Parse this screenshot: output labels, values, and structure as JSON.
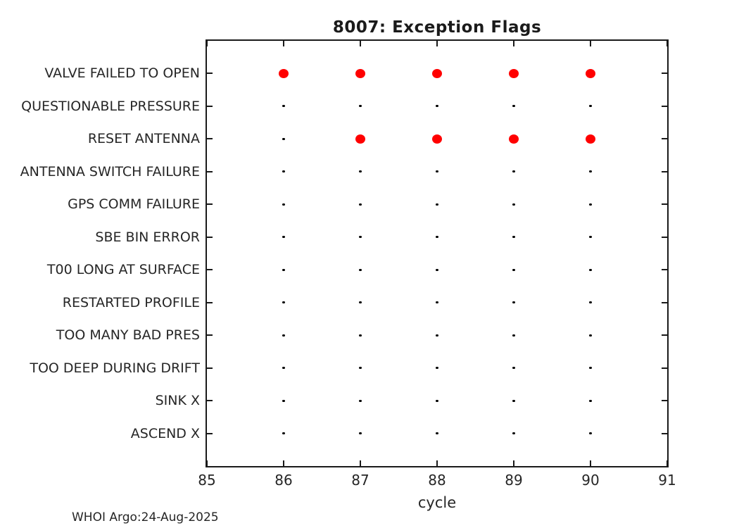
{
  "footer": {
    "credit": "WHOI Argo:24-Aug-2025"
  },
  "colors": {
    "flag_marker": "#ff0000",
    "no_flag_marker": "#000000",
    "axis": "#1a1a1a",
    "text": "#262626",
    "background": "#ffffff"
  },
  "chart_data": {
    "type": "scatter",
    "title": "8007: Exception Flags",
    "xlabel": "cycle",
    "ylabel": "",
    "xlim": [
      85,
      91
    ],
    "x_ticks": [
      85,
      86,
      87,
      88,
      89,
      90,
      91
    ],
    "grid": false,
    "legend": false,
    "categories": [
      "VALVE FAILED TO OPEN",
      "QUESTIONABLE PRESSURE",
      "RESET ANTENNA",
      "ANTENNA SWITCH FAILURE",
      "GPS COMM FAILURE",
      "SBE BIN ERROR",
      "T00 LONG AT SURFACE",
      "RESTARTED PROFILE",
      "TOO MANY BAD PRES",
      "TOO DEEP DURING DRIFT",
      "SINK X",
      "ASCEND X"
    ],
    "rows": [
      {
        "label": "VALVE FAILED TO OPEN",
        "flagged_cycles": [
          86,
          87,
          88,
          89,
          90
        ],
        "unflagged_cycles": []
      },
      {
        "label": "QUESTIONABLE PRESSURE",
        "flagged_cycles": [],
        "unflagged_cycles": [
          86,
          87,
          88,
          89,
          90
        ]
      },
      {
        "label": "RESET ANTENNA",
        "flagged_cycles": [
          87,
          88,
          89,
          90
        ],
        "unflagged_cycles": [
          86
        ]
      },
      {
        "label": "ANTENNA SWITCH FAILURE",
        "flagged_cycles": [],
        "unflagged_cycles": [
          86,
          87,
          88,
          89,
          90
        ]
      },
      {
        "label": "GPS COMM FAILURE",
        "flagged_cycles": [],
        "unflagged_cycles": [
          86,
          87,
          88,
          89,
          90
        ]
      },
      {
        "label": "SBE BIN ERROR",
        "flagged_cycles": [],
        "unflagged_cycles": [
          86,
          87,
          88,
          89,
          90
        ]
      },
      {
        "label": "T00 LONG AT SURFACE",
        "flagged_cycles": [],
        "unflagged_cycles": [
          86,
          87,
          88,
          89,
          90
        ]
      },
      {
        "label": "RESTARTED PROFILE",
        "flagged_cycles": [],
        "unflagged_cycles": [
          86,
          87,
          88,
          89,
          90
        ]
      },
      {
        "label": "TOO MANY BAD PRES",
        "flagged_cycles": [],
        "unflagged_cycles": [
          86,
          87,
          88,
          89,
          90
        ]
      },
      {
        "label": "TOO DEEP DURING DRIFT",
        "flagged_cycles": [],
        "unflagged_cycles": [
          86,
          87,
          88,
          89,
          90
        ]
      },
      {
        "label": "SINK X",
        "flagged_cycles": [],
        "unflagged_cycles": [
          86,
          87,
          88,
          89,
          90
        ]
      },
      {
        "label": "ASCEND X",
        "flagged_cycles": [],
        "unflagged_cycles": [
          86,
          87,
          88,
          89,
          90
        ]
      }
    ],
    "marker_flagged": {
      "shape": "filled-circle",
      "color": "#ff0000"
    },
    "marker_unflagged": {
      "shape": "point",
      "color": "#000000"
    }
  }
}
